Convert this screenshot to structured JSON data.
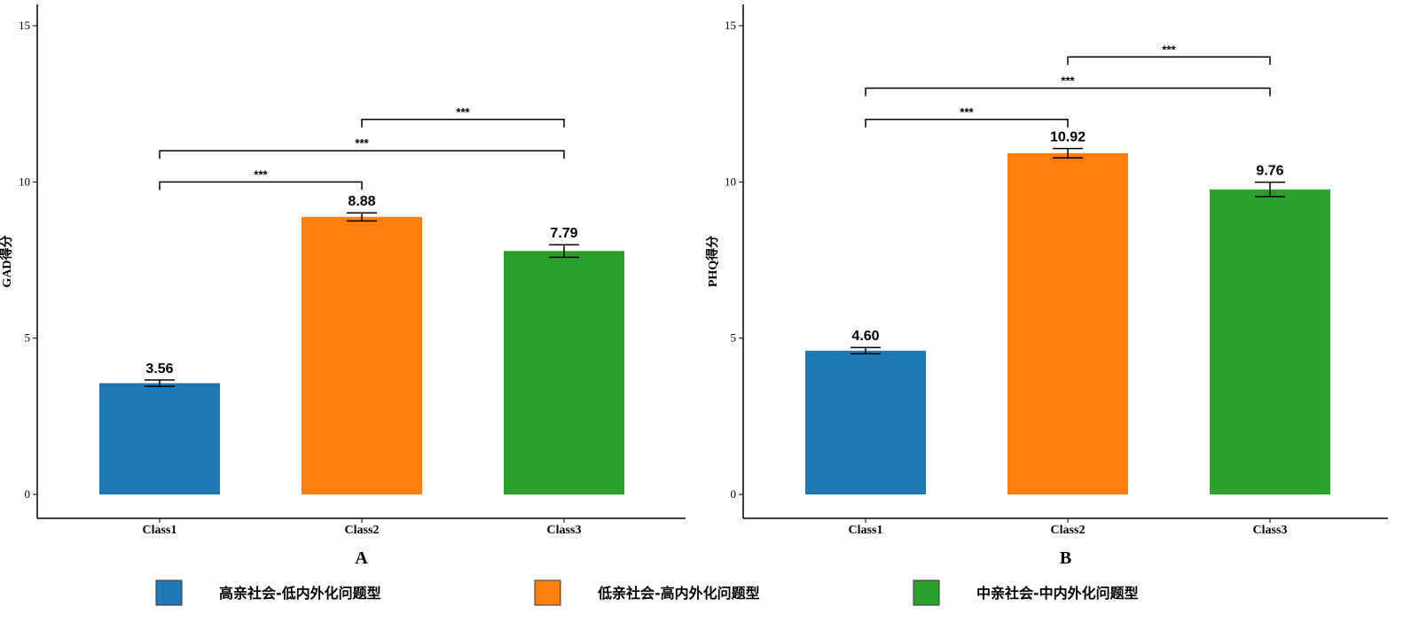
{
  "chart_data": [
    {
      "type": "bar",
      "panel": "A",
      "ylabel": "GAD得分",
      "ylim": [
        0,
        15
      ],
      "yticks": [
        0,
        5,
        10,
        15
      ],
      "categories": [
        "Class1",
        "Class2",
        "Class3"
      ],
      "values": [
        3.56,
        8.88,
        7.79
      ],
      "value_labels": [
        "3.56",
        "8.88",
        "7.79"
      ],
      "errors": [
        0.1,
        0.13,
        0.2
      ],
      "colors": [
        "#1f77b4",
        "#ff7f0e",
        "#2ca02c"
      ],
      "significance": [
        {
          "from": 0,
          "to": 1,
          "label": "***",
          "level": 10.0
        },
        {
          "from": 0,
          "to": 2,
          "label": "***",
          "level": 11.0
        },
        {
          "from": 1,
          "to": 2,
          "label": "***",
          "level": 12.0
        }
      ],
      "grid": false
    },
    {
      "type": "bar",
      "panel": "B",
      "ylabel": "PHQ得分",
      "ylim": [
        0,
        15
      ],
      "yticks": [
        0,
        5,
        10,
        15
      ],
      "categories": [
        "Class1",
        "Class2",
        "Class3"
      ],
      "values": [
        4.6,
        10.92,
        9.76
      ],
      "value_labels": [
        "4.60",
        "10.92",
        "9.76"
      ],
      "errors": [
        0.1,
        0.15,
        0.23
      ],
      "colors": [
        "#1f77b4",
        "#ff7f0e",
        "#2ca02c"
      ],
      "significance": [
        {
          "from": 0,
          "to": 1,
          "label": "***",
          "level": 12.0
        },
        {
          "from": 0,
          "to": 2,
          "label": "***",
          "level": 13.0
        },
        {
          "from": 1,
          "to": 2,
          "label": "***",
          "level": 14.0
        }
      ],
      "grid": false
    }
  ],
  "legend": {
    "position": "bottom",
    "items": [
      {
        "label": "高亲社会-低内外化问题型",
        "color": "#1f77b4"
      },
      {
        "label": "低亲社会-高内外化问题型",
        "color": "#ff7f0e"
      },
      {
        "label": "中亲社会-中内外化问题型",
        "color": "#2ca02c"
      }
    ]
  }
}
